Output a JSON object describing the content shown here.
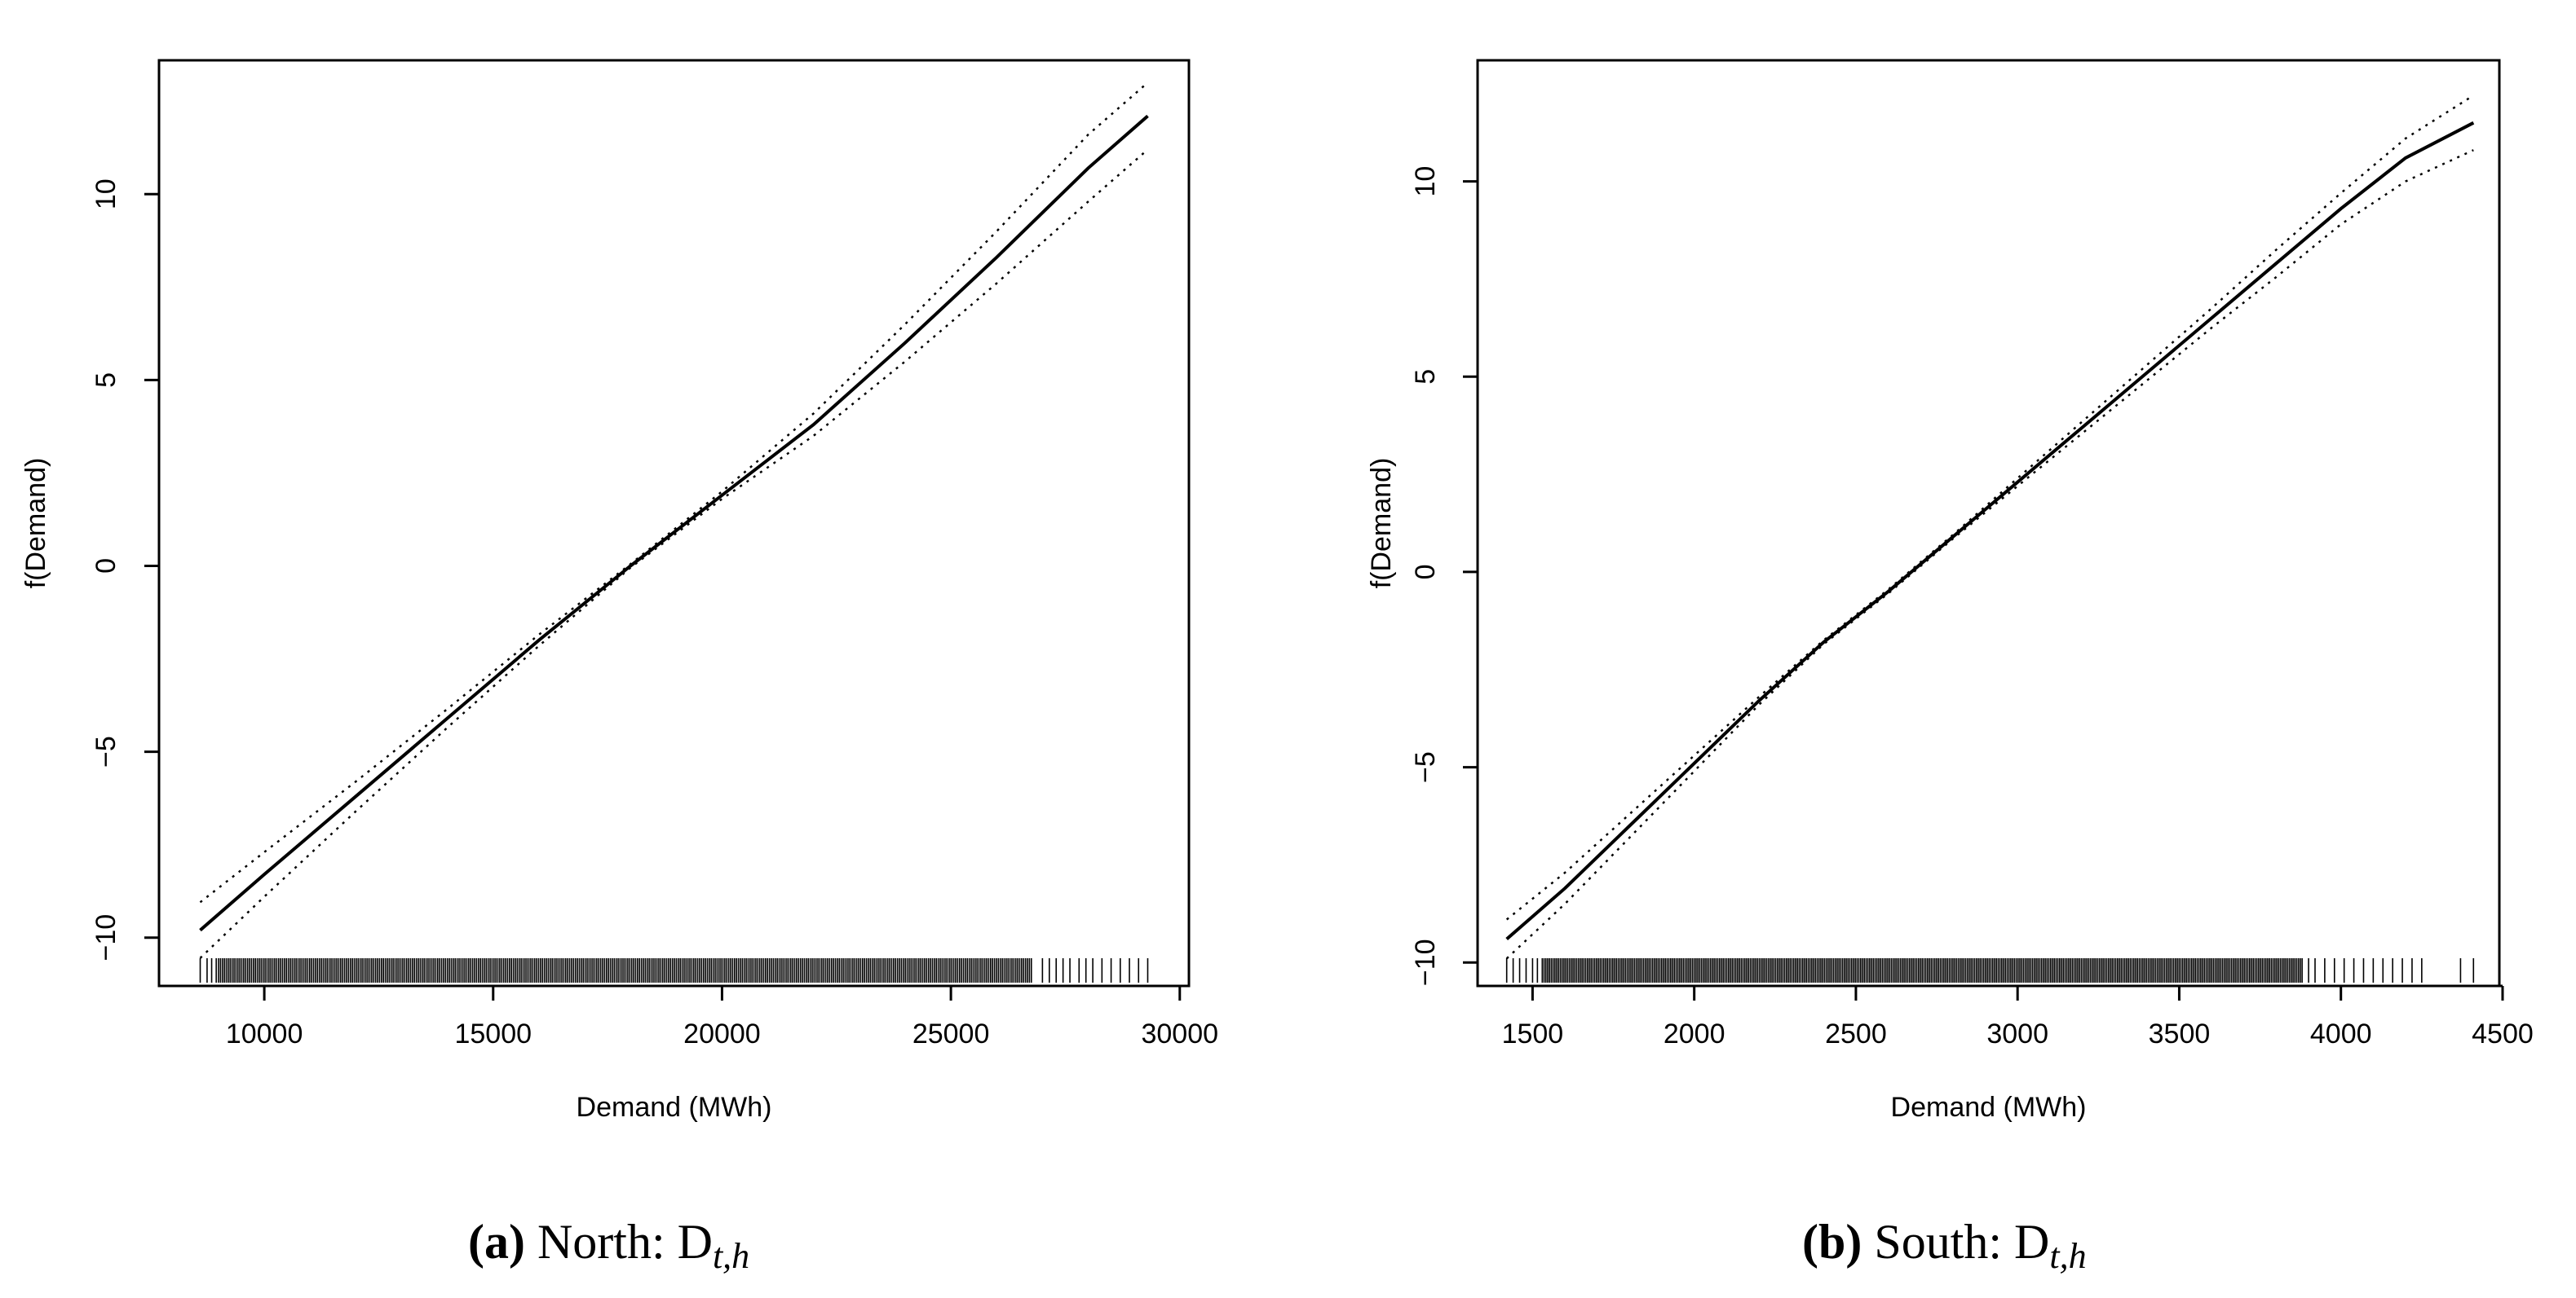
{
  "chart_data": [
    {
      "type": "line",
      "panel_tag": "(a)",
      "caption_text": "North: D",
      "caption_subscript": "t,h",
      "xlabel": "Demand (MWh)",
      "ylabel": "f(Demand)",
      "xlim": [
        7700,
        30200
      ],
      "ylim": [
        -11.3,
        13.6
      ],
      "xticks": [
        10000,
        15000,
        20000,
        25000,
        30000
      ],
      "yticks": [
        -10,
        -5,
        0,
        5,
        10
      ],
      "grid": false,
      "legend": "none",
      "series": [
        {
          "style": "solid",
          "x": [
            8600,
            10000,
            12000,
            14000,
            16000,
            18000,
            20000,
            22000,
            24000,
            26000,
            28000,
            29300
          ],
          "y": [
            -9.8,
            -8.3,
            -6.2,
            -4.1,
            -2.0,
            0.0,
            1.9,
            3.8,
            6.0,
            8.3,
            10.7,
            12.1
          ]
        },
        {
          "style": "dotted",
          "role": "upper band",
          "x": [
            8600,
            10000,
            12000,
            14000,
            16000,
            18000,
            20000,
            22000,
            24000,
            26000,
            28000,
            29300
          ],
          "y": [
            -9.05,
            -7.7,
            -5.8,
            -3.85,
            -1.85,
            0.05,
            2.0,
            4.1,
            6.5,
            9.0,
            11.6,
            13.0
          ]
        },
        {
          "style": "dotted",
          "role": "lower band",
          "x": [
            8600,
            10000,
            12000,
            14000,
            16000,
            18000,
            20000,
            22000,
            24000,
            26000,
            28000,
            29300
          ],
          "y": [
            -10.55,
            -8.9,
            -6.6,
            -4.35,
            -2.15,
            -0.05,
            1.8,
            3.5,
            5.5,
            7.6,
            9.8,
            11.2
          ]
        }
      ],
      "rug": {
        "dense_from": 9000,
        "dense_to": 26800,
        "sparse": [
          8600,
          8750,
          8850,
          8950,
          27000,
          27150,
          27300,
          27450,
          27600,
          27800,
          27950,
          28100,
          28300,
          28500,
          28700,
          28900,
          29100,
          29300
        ]
      }
    },
    {
      "type": "line",
      "panel_tag": "(b)",
      "caption_text": "South: D",
      "caption_subscript": "t,h",
      "xlabel": "Demand (MWh)",
      "ylabel": "f(Demand)",
      "xlim": [
        1330,
        4490
      ],
      "ylim": [
        -10.6,
        13.1
      ],
      "xticks": [
        1500,
        2000,
        2500,
        3000,
        3500,
        4000,
        4500
      ],
      "yticks": [
        -10,
        -5,
        0,
        5,
        10
      ],
      "grid": false,
      "legend": "none",
      "series": [
        {
          "style": "solid",
          "x": [
            1420,
            1600,
            1800,
            2000,
            2200,
            2400,
            2600,
            2800,
            3000,
            3200,
            3400,
            3600,
            3800,
            4000,
            4200,
            4410
          ],
          "y": [
            -9.4,
            -8.1,
            -6.5,
            -4.9,
            -3.3,
            -1.8,
            -0.5,
            0.9,
            2.3,
            3.7,
            5.1,
            6.5,
            7.9,
            9.3,
            10.6,
            11.5
          ]
        },
        {
          "style": "dotted",
          "role": "upper band",
          "x": [
            1420,
            1600,
            1800,
            2000,
            2200,
            2400,
            2600,
            2800,
            3000,
            3200,
            3400,
            3600,
            3800,
            4000,
            4200,
            4410
          ],
          "y": [
            -8.9,
            -7.7,
            -6.2,
            -4.7,
            -3.2,
            -1.75,
            -0.45,
            0.95,
            2.4,
            3.85,
            5.3,
            6.75,
            8.25,
            9.7,
            11.1,
            12.2
          ]
        },
        {
          "style": "dotted",
          "role": "lower band",
          "x": [
            1420,
            1600,
            1800,
            2000,
            2200,
            2400,
            2600,
            2800,
            3000,
            3200,
            3400,
            3600,
            3800,
            4000,
            4200,
            4410
          ],
          "y": [
            -9.9,
            -8.5,
            -6.8,
            -5.1,
            -3.4,
            -1.85,
            -0.55,
            0.85,
            2.2,
            3.55,
            4.9,
            6.25,
            7.55,
            8.9,
            10.0,
            10.8
          ]
        }
      ],
      "rug": {
        "dense_from": 1530,
        "dense_to": 3880,
        "sparse": [
          1420,
          1440,
          1460,
          1480,
          1500,
          1515,
          3900,
          3920,
          3950,
          3980,
          4010,
          4040,
          4070,
          4100,
          4130,
          4160,
          4190,
          4220,
          4250,
          4370,
          4410
        ]
      }
    }
  ]
}
